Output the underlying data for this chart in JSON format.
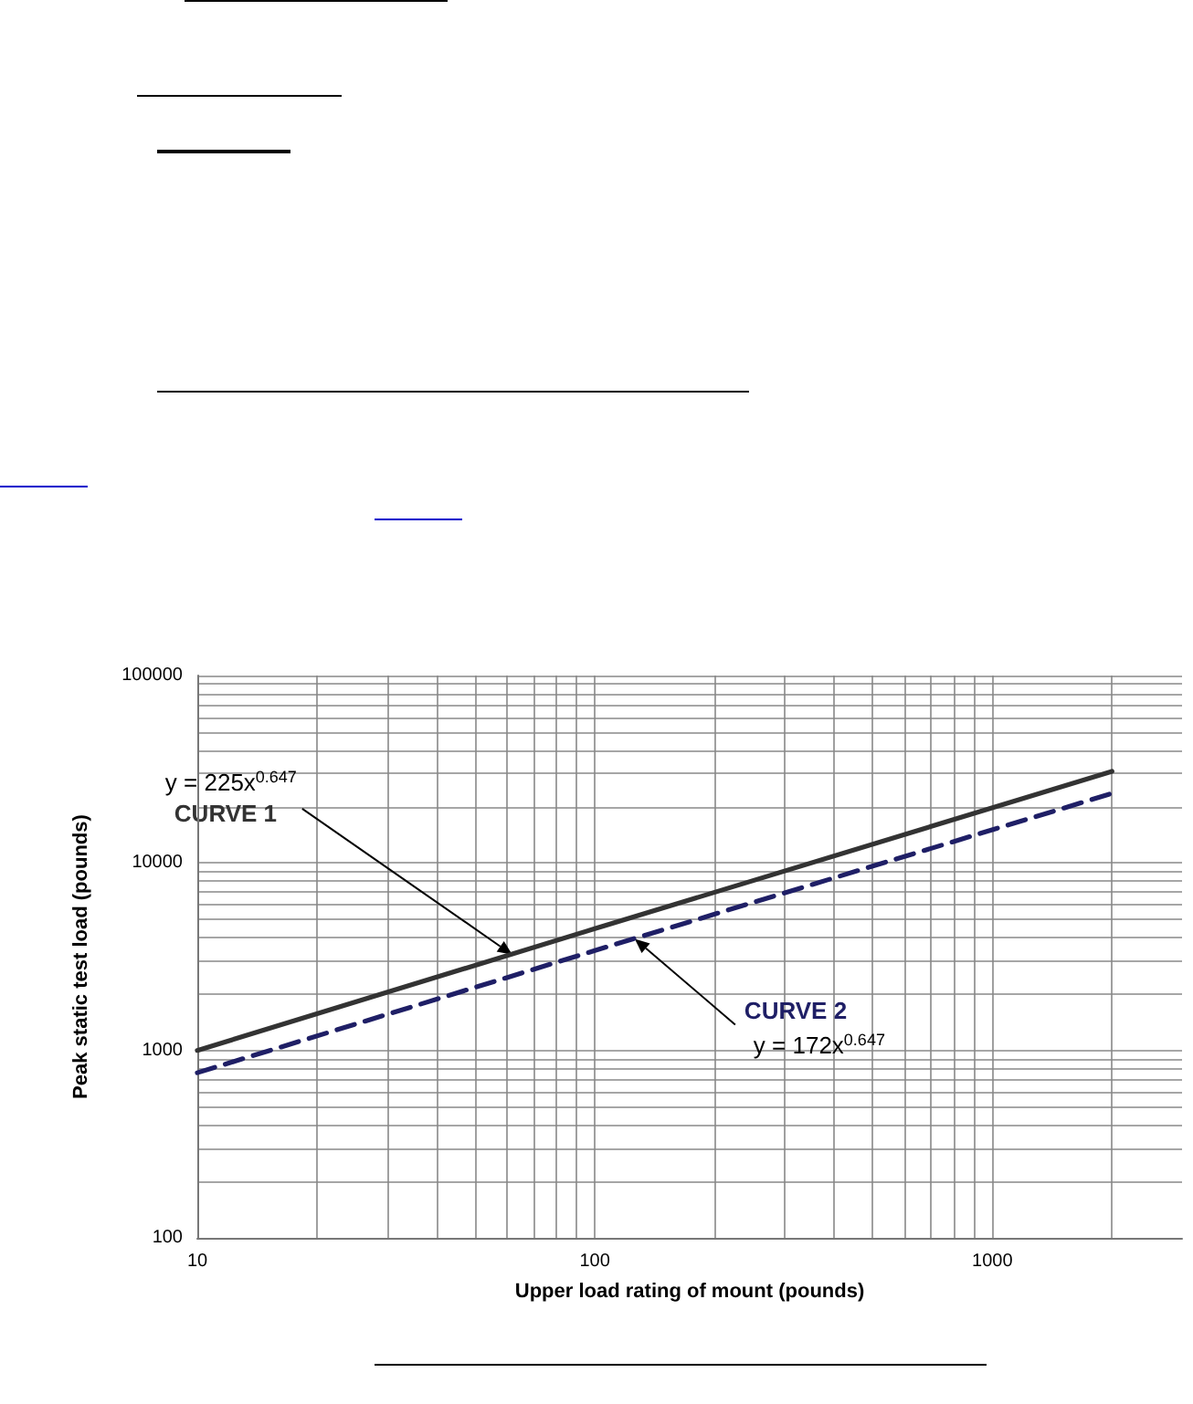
{
  "chart_data": {
    "type": "line",
    "xlabel": "Upper load rating of mount (pounds)",
    "ylabel": "Peak static test load (pounds)",
    "log": "xy",
    "grid": true,
    "marker": "none",
    "legend": false,
    "xlim": [
      10,
      3000
    ],
    "xticks": [
      10,
      {
        "value": 20,
        "label": null
      },
      {
        "value": 30,
        "label": null
      },
      {
        "value": 40,
        "label": null
      },
      {
        "value": 50,
        "label": null
      },
      {
        "value": 60,
        "label": null
      },
      {
        "value": 70,
        "label": null
      },
      {
        "value": 80,
        "label": null
      },
      {
        "value": 90,
        "label": null
      },
      100,
      {
        "value": 200,
        "label": null
      },
      {
        "value": 300,
        "label": null
      },
      {
        "value": 400,
        "label": null
      },
      {
        "value": 500,
        "label": null
      },
      {
        "value": 600,
        "label": null
      },
      {
        "value": 700,
        "label": null
      },
      {
        "value": 800,
        "label": null
      },
      {
        "value": 900,
        "label": null
      },
      1000,
      {
        "value": 2000,
        "label": null
      }
    ],
    "ylim": [
      100,
      100000
    ],
    "yticks": [
      100,
      {
        "value": 200,
        "label": null
      },
      {
        "value": 300,
        "label": null
      },
      {
        "value": 400,
        "label": null
      },
      {
        "value": 500,
        "label": null
      },
      {
        "value": 600,
        "label": null
      },
      {
        "value": 700,
        "label": null
      },
      {
        "value": 800,
        "label": null
      },
      {
        "value": 900,
        "label": null
      },
      1000,
      {
        "value": 2000,
        "label": null
      },
      {
        "value": 3000,
        "label": null
      },
      {
        "value": 4000,
        "label": null
      },
      {
        "value": 5000,
        "label": null
      },
      {
        "value": 6000,
        "label": null
      },
      {
        "value": 7000,
        "label": null
      },
      {
        "value": 8000,
        "label": null
      },
      {
        "value": 9000,
        "label": null
      },
      10000,
      {
        "value": 20000,
        "label": null
      },
      {
        "value": 30000,
        "label": null
      },
      {
        "value": 40000,
        "label": null
      },
      {
        "value": 50000,
        "label": null
      },
      {
        "value": 60000,
        "label": null
      },
      {
        "value": 70000,
        "label": null
      },
      {
        "value": 80000,
        "label": null
      },
      {
        "value": 90000,
        "label": null
      },
      100000
    ],
    "series": [
      {
        "name": "CURVE 1",
        "color": "#333333",
        "line_style": "solid",
        "x": [
          10,
          100,
          2000
        ],
        "values": [
          1000,
          4460,
          30800
        ]
      },
      {
        "name": "CURVE 2",
        "color": "#1f1f66",
        "line_style": "dashed",
        "x": [
          10,
          100,
          2000
        ],
        "values": [
          760,
          3410,
          23500
        ]
      }
    ],
    "annotations": [
      {
        "text": "y = 225x$^{0.647}$",
        "x": 62,
        "y": 3240
      },
      {
        "text": "y = 172x$^{0.647}$",
        "x": 126,
        "y": 3940
      }
    ]
  }
}
